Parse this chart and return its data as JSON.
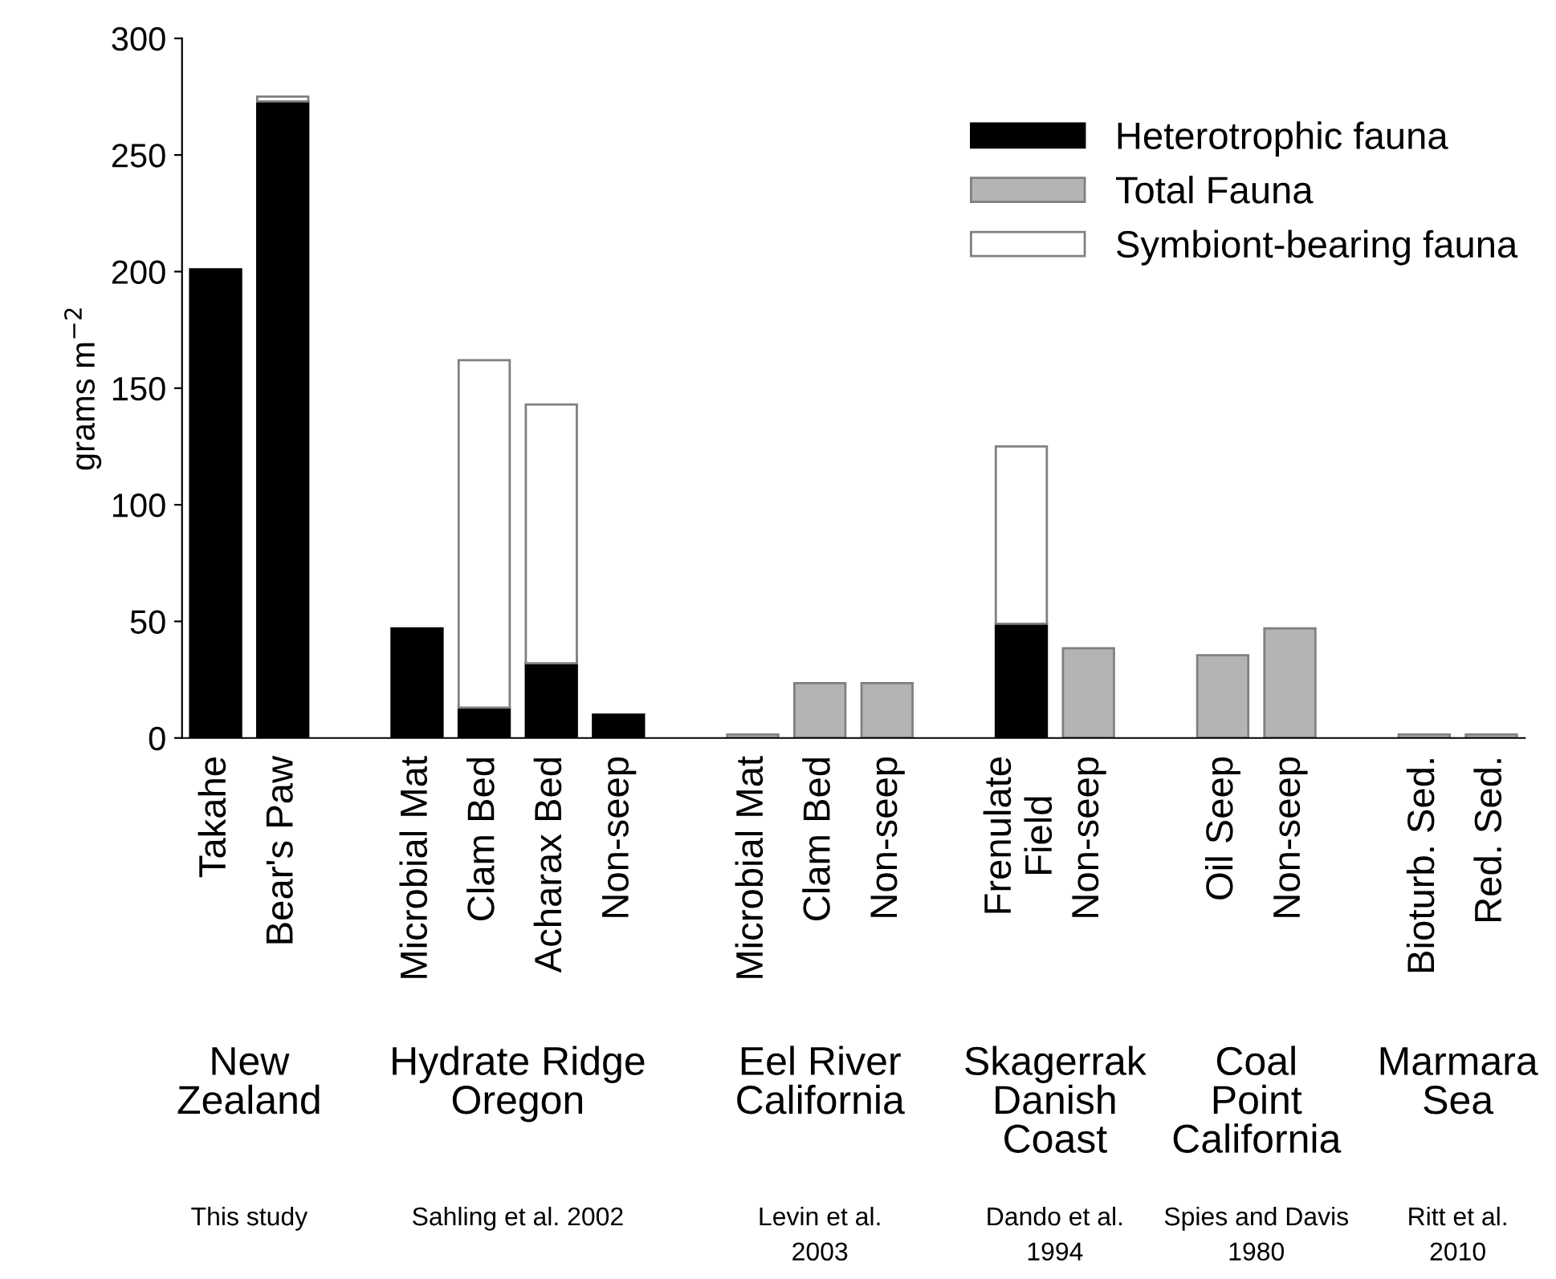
{
  "chart_data": {
    "type": "bar",
    "stacked": true,
    "ylabel": "grams m$^{−2}$",
    "categories": [
      "Takahe",
      "Bear's Paw",
      null,
      "Microbial Mat",
      "Clam Bed",
      "Acharax Bed",
      "Non-seep",
      null,
      "Microbial Mat",
      "Clam Bed",
      "Non-seep",
      null,
      "Frenulate\nField",
      "Non-seep",
      null,
      "Oil Seep",
      "Non-seep",
      null,
      "Bioturb. Sed.",
      "Red. Sed."
    ],
    "series": [
      {
        "name": "Heterotrophic fauna",
        "color": "#000000",
        "values": [
          201,
          273,
          null,
          47,
          13,
          32,
          10,
          null,
          null,
          null,
          null,
          null,
          49,
          null,
          null,
          null,
          null,
          null,
          null,
          null
        ]
      },
      {
        "name": "Total Fauna",
        "color": "#b4b4b4",
        "values": [
          null,
          null,
          null,
          null,
          null,
          null,
          null,
          null,
          1.5,
          23.5,
          23.5,
          null,
          null,
          38.5,
          null,
          35.5,
          47,
          null,
          1.5,
          1.5
        ]
      },
      {
        "name": "Symbiont-bearing fauna",
        "color": "#ffffff",
        "values": [
          null,
          2,
          null,
          null,
          149,
          111,
          null,
          null,
          null,
          null,
          null,
          null,
          76,
          null,
          null,
          null,
          null,
          null,
          null,
          null
        ]
      }
    ],
    "ylim": [
      0,
      300
    ],
    "yticks": [
      0,
      50,
      100,
      150,
      200,
      250,
      300
    ],
    "grid": false,
    "legend": "top right",
    "annotations": [
      "New\nZealand",
      "Hydrate Ridge\nOregon",
      "Eel River\nCalifornia",
      "Skagerrak\nDanish\nCoast",
      "Coal\nPoint\nCalifornia",
      "Marmara\nSea",
      "This study",
      "Sahling et al. 2002",
      "Levin et al.\n2003",
      "Dando et al.\n1994",
      "Spies and Davis\n1980",
      "Ritt et al.\n2010"
    ]
  }
}
